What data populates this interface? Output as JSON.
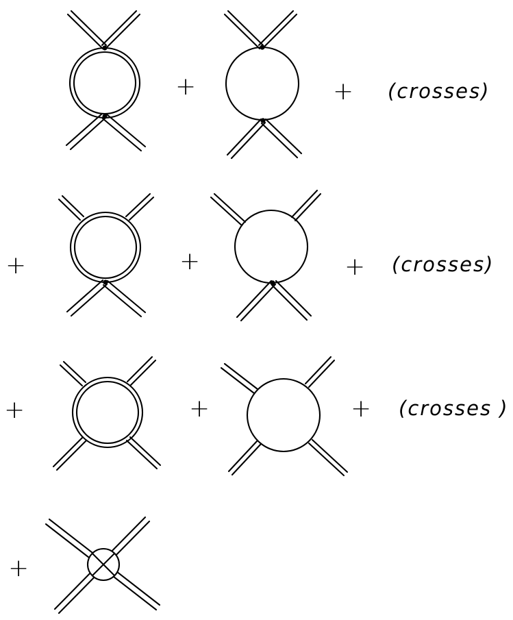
{
  "rows": [
    {
      "leading_plus": "",
      "terms": [
        {
          "loop": "double",
          "legs": "x",
          "top_vertex": true,
          "bottom_vertex": true
        },
        {
          "loop": "single",
          "legs": "x",
          "top_vertex": true,
          "bottom_vertex": true
        }
      ],
      "plus_signs": [
        "+",
        "+"
      ],
      "label": "(crosses)"
    },
    {
      "leading_plus": "+",
      "terms": [
        {
          "loop": "double",
          "legs": "mixed",
          "top_vertex": false,
          "bottom_vertex": true
        },
        {
          "loop": "single",
          "legs": "mixed",
          "top_vertex": false,
          "bottom_vertex": true
        }
      ],
      "plus_signs": [
        "+",
        "+"
      ],
      "label": "(crosses)"
    },
    {
      "leading_plus": "+",
      "terms": [
        {
          "loop": "double",
          "legs": "radial",
          "top_vertex": false,
          "bottom_vertex": false
        },
        {
          "loop": "single",
          "legs": "radial",
          "top_vertex": false,
          "bottom_vertex": false
        }
      ],
      "plus_signs": [
        "+",
        "+"
      ],
      "label": "(crosses )"
    },
    {
      "leading_plus": "+",
      "terms": [
        {
          "loop": "crossed",
          "legs": "through"
        }
      ],
      "plus_signs": [],
      "label": ""
    }
  ],
  "colors": {
    "ink": "#000000",
    "paper": "#ffffff"
  }
}
